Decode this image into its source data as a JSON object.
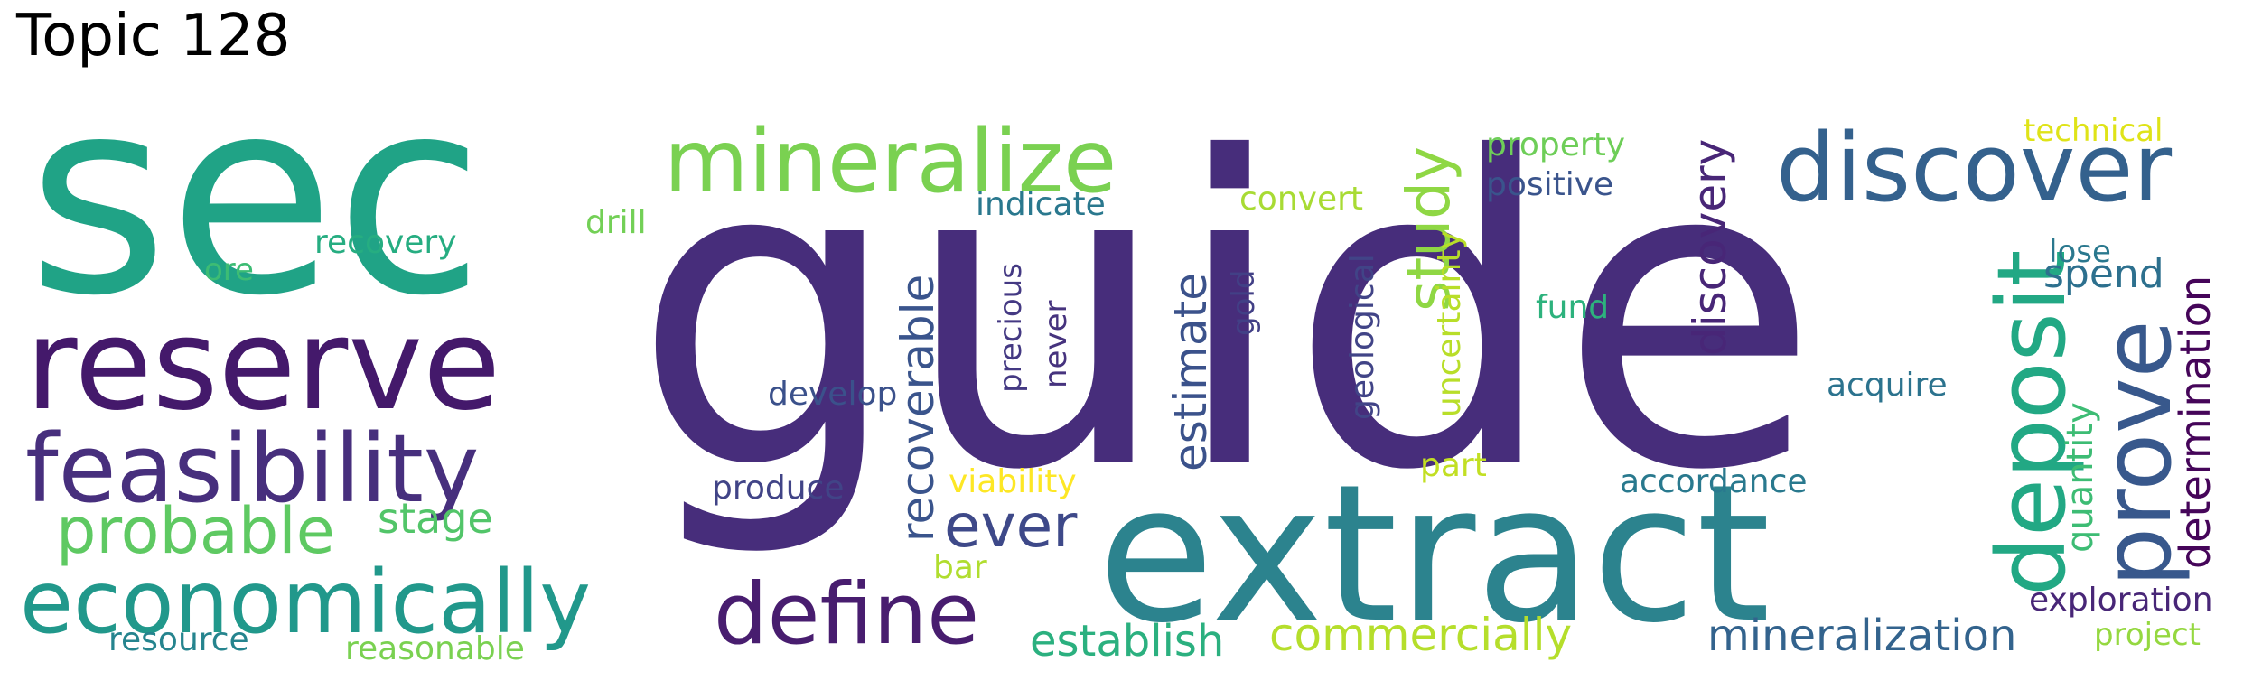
{
  "title": "Topic 128",
  "words": [
    {
      "text": "guide",
      "color": "#472d7b"
    },
    {
      "text": "sec",
      "color": "#20a386"
    },
    {
      "text": "extract",
      "color": "#2c838e"
    },
    {
      "text": "reserve",
      "color": "#44196b"
    },
    {
      "text": "feasibility",
      "color": "#472f7d"
    },
    {
      "text": "economically",
      "color": "#21988b"
    },
    {
      "text": "mineralize",
      "color": "#7ad151"
    },
    {
      "text": "discover",
      "color": "#34618d"
    },
    {
      "text": "deposit",
      "color": "#22a884"
    },
    {
      "text": "prove",
      "color": "#38588c"
    },
    {
      "text": "define",
      "color": "#481d6f"
    },
    {
      "text": "probable",
      "color": "#5ec962"
    },
    {
      "text": "ever",
      "color": "#3e4989"
    },
    {
      "text": "study",
      "color": "#8fd744"
    },
    {
      "text": "recoverable",
      "color": "#3a548c"
    },
    {
      "text": "estimate",
      "color": "#3b528b"
    },
    {
      "text": "discovery",
      "color": "#482677"
    },
    {
      "text": "determination",
      "color": "#450559"
    },
    {
      "text": "commercially",
      "color": "#b5de2b"
    },
    {
      "text": "mineralization",
      "color": "#33638d"
    },
    {
      "text": "establish",
      "color": "#2bb07f"
    },
    {
      "text": "quantity",
      "color": "#3dbc74"
    },
    {
      "text": "stage",
      "color": "#52c569"
    },
    {
      "text": "spend",
      "color": "#2d708e"
    },
    {
      "text": "geological",
      "color": "#414487"
    },
    {
      "text": "uncertainty",
      "color": "#b8de29"
    },
    {
      "text": "precious",
      "color": "#443983"
    },
    {
      "text": "never",
      "color": "#46337e"
    },
    {
      "text": "gold",
      "color": "#424086"
    },
    {
      "text": "property",
      "color": "#6ece58"
    },
    {
      "text": "positive",
      "color": "#3a548c"
    },
    {
      "text": "indicate",
      "color": "#2a788e"
    },
    {
      "text": "recovery",
      "color": "#26ad81"
    },
    {
      "text": "drill",
      "color": "#73d056"
    },
    {
      "text": "convert",
      "color": "#a8db34"
    },
    {
      "text": "develop",
      "color": "#3b518b"
    },
    {
      "text": "produce",
      "color": "#414487"
    },
    {
      "text": "fund",
      "color": "#2db27d"
    },
    {
      "text": "acquire",
      "color": "#2c738e"
    },
    {
      "text": "accordance",
      "color": "#29798e"
    },
    {
      "text": "lose",
      "color": "#2a788e"
    },
    {
      "text": "technical",
      "color": "#dfe318"
    },
    {
      "text": "exploration",
      "color": "#482677"
    },
    {
      "text": "project",
      "color": "#95d840"
    },
    {
      "text": "part",
      "color": "#c2df23"
    },
    {
      "text": "viability",
      "color": "#fde725"
    },
    {
      "text": "bar",
      "color": "#b0dd2f"
    },
    {
      "text": "resource",
      "color": "#25848e"
    },
    {
      "text": "reasonable",
      "color": "#7ad151"
    },
    {
      "text": "ore",
      "color": "#3dbc74"
    }
  ]
}
